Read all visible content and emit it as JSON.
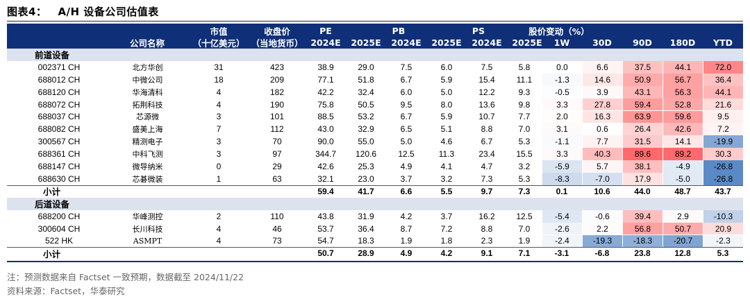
{
  "title": {
    "label": "图表4：",
    "text": "A/H 设备公司估值表"
  },
  "header": {
    "col_name": "公司名称",
    "mktcap_top": "市值",
    "mktcap_bottom": "（十亿美元）",
    "price_top": "收盘价",
    "price_bottom": "（当地货币）",
    "pe": "PE",
    "pb": "PB",
    "ps": "PS",
    "perf": "股价变动（%）",
    "y2024": "2024E",
    "y2025": "2025E",
    "p1w": "1W",
    "p30d": "30D",
    "p90d": "90D",
    "p180d": "180D",
    "pytd": "YTD"
  },
  "sections": [
    {
      "name": "前道设备",
      "rows": [
        {
          "ticker": "002371 CH",
          "name": "北方华创",
          "mktcap": "31",
          "price": "423",
          "pe24": "38.9",
          "pe25": "29.0",
          "pb24": "7.5",
          "pb25": "6.0",
          "ps24": "7.5",
          "ps25": "5.8",
          "w1": "0.0",
          "d30": "6.6",
          "d90": "37.5",
          "d180": "44.1",
          "ytd": "72.0"
        },
        {
          "ticker": "688012 CH",
          "name": "中微公司",
          "mktcap": "18",
          "price": "209",
          "pe24": "77.1",
          "pe25": "51.8",
          "pb24": "6.7",
          "pb25": "5.9",
          "ps24": "15.4",
          "ps25": "11.1",
          "w1": "-1.3",
          "d30": "14.6",
          "d90": "50.9",
          "d180": "56.7",
          "ytd": "36.4"
        },
        {
          "ticker": "688120 CH",
          "name": "华海清科",
          "mktcap": "4",
          "price": "182",
          "pe24": "42.2",
          "pe25": "32.4",
          "pb24": "6.0",
          "pb25": "5.0",
          "ps24": "12.2",
          "ps25": "9.3",
          "w1": "-0.5",
          "d30": "3.9",
          "d90": "43.1",
          "d180": "56.3",
          "ytd": "44.1"
        },
        {
          "ticker": "688072 CH",
          "name": "拓荆科技",
          "mktcap": "4",
          "price": "190",
          "pe24": "75.8",
          "pe25": "50.5",
          "pb24": "9.5",
          "pb25": "8.0",
          "ps24": "13.6",
          "ps25": "9.8",
          "w1": "3.3",
          "d30": "27.8",
          "d90": "59.4",
          "d180": "52.8",
          "ytd": "21.6"
        },
        {
          "ticker": "688037 CH",
          "name": "芯源微",
          "mktcap": "3",
          "price": "101",
          "pe24": "88.5",
          "pe25": "53.2",
          "pb24": "6.7",
          "pb25": "5.9",
          "ps24": "10.7",
          "ps25": "7.7",
          "w1": "2.0",
          "d30": "16.3",
          "d90": "63.9",
          "d180": "59.6",
          "ytd": "9.5"
        },
        {
          "ticker": "688082 CH",
          "name": "盛美上海",
          "mktcap": "7",
          "price": "112",
          "pe24": "43.0",
          "pe25": "32.9",
          "pb24": "6.5",
          "pb25": "5.1",
          "ps24": "8.8",
          "ps25": "7.0",
          "w1": "3.1",
          "d30": "0.6",
          "d90": "26.4",
          "d180": "42.6",
          "ytd": "7.2"
        },
        {
          "ticker": "300567 CH",
          "name": "精测电子",
          "mktcap": "3",
          "price": "70",
          "pe24": "90.0",
          "pe25": "55.0",
          "pb24": "5.0",
          "pb25": "4.6",
          "ps24": "6.7",
          "ps25": "5.3",
          "w1": "-1.1",
          "d30": "7.7",
          "d90": "31.5",
          "d180": "14.1",
          "ytd": "-19.9"
        },
        {
          "ticker": "688361 CH",
          "name": "中科飞测",
          "mktcap": "3",
          "price": "97",
          "pe24": "344.7",
          "pe25": "120.6",
          "pb24": "12.5",
          "pb25": "11.3",
          "ps24": "23.4",
          "ps25": "15.5",
          "w1": "3.3",
          "d30": "40.3",
          "d90": "89.6",
          "d180": "89.2",
          "ytd": "30.3"
        },
        {
          "ticker": "688147 CH",
          "name": "微导纳米",
          "mktcap": "0",
          "price": "29",
          "pe24": "42.6",
          "pe25": "25.3",
          "pb24": "4.9",
          "pb25": "4.1",
          "ps24": "4.7",
          "ps25": "3.2",
          "w1": "-5.9",
          "d30": "5.7",
          "d90": "38.1",
          "d180": "-4.9",
          "ytd": "-26.8"
        },
        {
          "ticker": "688630 CH",
          "name": "芯碁微装",
          "mktcap": "1",
          "price": "63",
          "pe24": "32.1",
          "pe25": "23.0",
          "pb24": "3.7",
          "pb25": "3.2",
          "ps24": "7.3",
          "ps25": "5.3",
          "w1": "-8.3",
          "d30": "-7.0",
          "d90": "17.9",
          "d180": "-5.0",
          "ytd": "-26.8"
        }
      ],
      "subtotal": {
        "label": "小计",
        "pe24": "59.4",
        "pe25": "41.7",
        "pb24": "6.6",
        "pb25": "5.5",
        "ps24": "9.7",
        "ps25": "7.3",
        "w1": "0.1",
        "d30": "10.6",
        "d90": "44.0",
        "d180": "48.7",
        "ytd": "43.7"
      }
    },
    {
      "name": "后道设备",
      "rows": [
        {
          "ticker": "688200 CH",
          "name": "华峰测控",
          "mktcap": "2",
          "price": "110",
          "pe24": "43.8",
          "pe25": "31.9",
          "pb24": "4.2",
          "pb25": "3.7",
          "ps24": "16.2",
          "ps25": "12.5",
          "w1": "-5.4",
          "d30": "-0.6",
          "d90": "39.4",
          "d180": "2.9",
          "ytd": "-10.3"
        },
        {
          "ticker": "300604 CH",
          "name": "长川科技",
          "mktcap": "4",
          "price": "46",
          "pe24": "53.7",
          "pe25": "36.4",
          "pb24": "8.7",
          "pb25": "7.2",
          "ps24": "8.8",
          "ps25": "7.0",
          "w1": "-2.6",
          "d30": "2.2",
          "d90": "56.8",
          "d180": "50.7",
          "ytd": "20.9"
        },
        {
          "ticker": "522 HK",
          "name": "ASMPT",
          "mktcap": "4",
          "price": "73",
          "pe24": "54.7",
          "pe25": "18.3",
          "pb24": "1.9",
          "pb25": "1.8",
          "ps24": "2.3",
          "ps25": "1.9",
          "w1": "-2.4",
          "d30": "-19.3",
          "d90": "-18.3",
          "d180": "-20.7",
          "ytd": "-2.3"
        }
      ],
      "subtotal": {
        "label": "小计",
        "pe24": "50.7",
        "pe25": "28.9",
        "pb24": "4.9",
        "pb25": "4.2",
        "ps24": "9.1",
        "ps25": "7.1",
        "w1": "-3.1",
        "d30": "-6.8",
        "d90": "23.8",
        "d180": "12.8",
        "ytd": "5.3"
      }
    }
  ],
  "notes": {
    "note1": "注：预测数据来自 Factset 一致预期，数据截至 2024/11/22",
    "source": "资料来源：Factset，华泰研究"
  },
  "colors": {
    "header_bg": "#0f2f78",
    "section_bg": "#dde2ef",
    "positive": "#f8696b",
    "negative": "#5a8ac6"
  }
}
